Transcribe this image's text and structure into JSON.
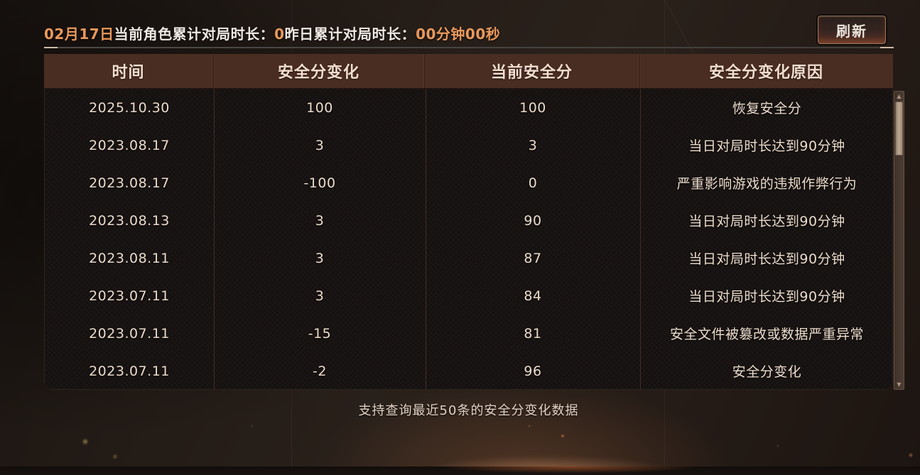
{
  "top_bar": {
    "date": "02月17日",
    "today_label": "当前角色累计对局时长：",
    "today_value": "0",
    "yesterday_label": "昨日累计对局时长：",
    "yesterday_value": "00分钟00秒",
    "refresh_label": "刷新"
  },
  "table": {
    "columns": [
      "时间",
      "安全分变化",
      "当前安全分",
      "安全分变化原因"
    ],
    "rows": [
      {
        "date": "2025.10.30",
        "change": "100",
        "current": "100",
        "reason": "恢复安全分"
      },
      {
        "date": "2023.08.17",
        "change": "3",
        "current": "3",
        "reason": "当日对局时长达到90分钟"
      },
      {
        "date": "2023.08.17",
        "change": "-100",
        "current": "0",
        "reason": "严重影响游戏的违规作弊行为"
      },
      {
        "date": "2023.08.13",
        "change": "3",
        "current": "90",
        "reason": "当日对局时长达到90分钟"
      },
      {
        "date": "2023.08.11",
        "change": "3",
        "current": "87",
        "reason": "当日对局时长达到90分钟"
      },
      {
        "date": "2023.07.11",
        "change": "3",
        "current": "84",
        "reason": "当日对局时长达到90分钟"
      },
      {
        "date": "2023.07.11",
        "change": "-15",
        "current": "81",
        "reason": "安全文件被篡改或数据严重异常"
      },
      {
        "date": "2023.07.11",
        "change": "-2",
        "current": "96",
        "reason": "安全分变化"
      }
    ]
  },
  "footer": {
    "note": "支持查询最近50条的安全分变化数据"
  },
  "scrollbar": {
    "up_icon": "▲",
    "down_icon": "▼"
  },
  "colors": {
    "accent_orange": "#e9995c",
    "header_brown": "#4a2d22",
    "body_text": "#ecdccb",
    "scrollbar_thumb": "#bca891"
  }
}
